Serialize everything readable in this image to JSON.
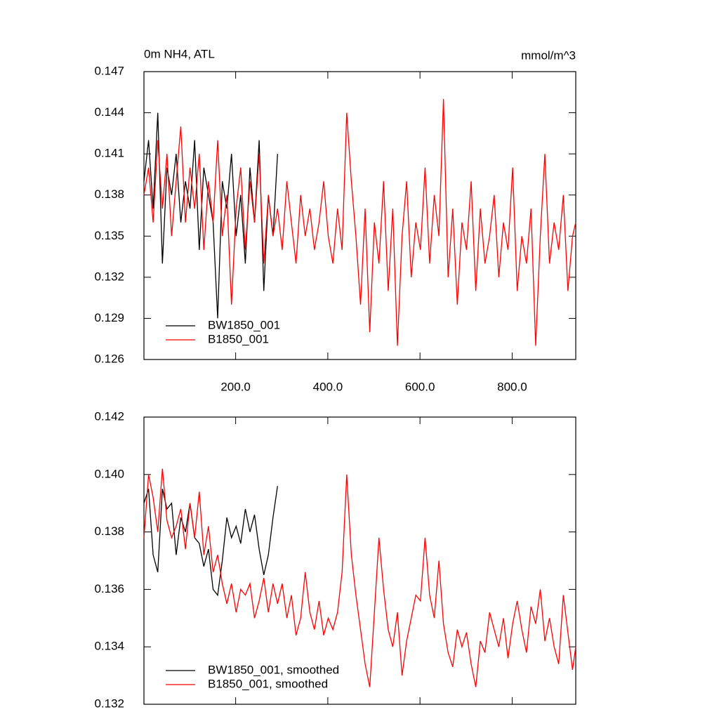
{
  "chart_data": [
    {
      "type": "line",
      "title": "0m NH4, ATL",
      "subtitle": "mmol/m^3",
      "x": [
        1,
        11,
        21,
        31,
        41,
        51,
        61,
        71,
        81,
        91,
        101,
        111,
        121,
        131,
        141,
        151,
        161,
        171,
        181,
        191,
        201,
        211,
        221,
        231,
        241,
        251,
        261,
        271,
        281,
        291,
        301,
        311,
        321,
        331,
        341,
        351,
        361,
        371,
        381,
        391,
        401,
        411,
        421,
        431,
        441,
        451,
        461,
        471,
        481,
        491,
        501,
        511,
        521,
        531,
        541,
        551,
        561,
        571,
        581,
        591,
        601,
        611,
        621,
        631,
        641,
        651,
        661,
        671,
        681,
        691,
        701,
        711,
        721,
        731,
        741,
        751,
        761,
        771,
        781,
        791,
        801,
        811,
        821,
        831,
        841,
        851,
        861,
        871,
        881,
        891,
        901,
        911,
        921,
        931,
        938
      ],
      "xlim": [
        1,
        938
      ],
      "xticks": [
        {
          "value": 200,
          "label": "200.0"
        },
        {
          "value": 400,
          "label": "400.0"
        },
        {
          "value": 600,
          "label": "600.0"
        },
        {
          "value": 800,
          "label": "800.0"
        }
      ],
      "ylim": [
        0.126,
        0.147
      ],
      "yticks": [
        0.126,
        0.129,
        0.132,
        0.135,
        0.138,
        0.141,
        0.144,
        0.147
      ],
      "legend": "lower left",
      "series": [
        {
          "name": "BW1850_001",
          "color": "#000000",
          "values": [
            0.139,
            0.142,
            0.137,
            0.144,
            0.133,
            0.14,
            0.138,
            0.141,
            0.136,
            0.139,
            0.137,
            0.142,
            0.134,
            0.14,
            0.138,
            0.136,
            0.129,
            0.139,
            0.137,
            0.141,
            0.135,
            0.138,
            0.133,
            0.14,
            0.136,
            0.142,
            0.131,
            0.138,
            0.135,
            0.141,
            null,
            null,
            null,
            null,
            null,
            null,
            null,
            null,
            null,
            null,
            null,
            null,
            null,
            null,
            null,
            null,
            null,
            null,
            null,
            null,
            null,
            null,
            null,
            null,
            null,
            null,
            null,
            null,
            null,
            null,
            null,
            null,
            null,
            null,
            null,
            null,
            null,
            null,
            null,
            null,
            null,
            null,
            null,
            null,
            null,
            null,
            null,
            null,
            null,
            null,
            null,
            null,
            null,
            null,
            null,
            null,
            null,
            null,
            null,
            null,
            null,
            null,
            null,
            null,
            null
          ]
        },
        {
          "name": "B1850_001",
          "color": "#ff0000",
          "values": [
            0.138,
            0.14,
            0.136,
            0.142,
            0.137,
            0.141,
            0.135,
            0.139,
            0.143,
            0.136,
            0.14,
            0.137,
            0.141,
            0.134,
            0.139,
            0.136,
            0.142,
            0.135,
            0.138,
            0.13,
            0.137,
            0.14,
            0.134,
            0.139,
            0.136,
            0.141,
            0.133,
            0.138,
            0.135,
            0.137,
            0.134,
            0.139,
            0.136,
            0.133,
            0.138,
            0.135,
            0.137,
            0.134,
            0.136,
            0.139,
            0.135,
            0.133,
            0.137,
            0.134,
            0.144,
            0.139,
            0.135,
            0.13,
            0.137,
            0.128,
            0.136,
            0.133,
            0.139,
            0.131,
            0.137,
            0.127,
            0.135,
            0.139,
            0.132,
            0.136,
            0.134,
            0.14,
            0.133,
            0.138,
            0.135,
            0.145,
            0.132,
            0.137,
            0.13,
            0.136,
            0.134,
            0.139,
            0.131,
            0.137,
            0.133,
            0.135,
            0.138,
            0.132,
            0.136,
            0.134,
            0.14,
            0.131,
            0.135,
            0.133,
            0.137,
            0.127,
            0.135,
            0.141,
            0.133,
            0.136,
            0.134,
            0.138,
            0.131,
            0.135,
            0.136
          ]
        }
      ]
    },
    {
      "type": "line",
      "x": [
        1,
        11,
        21,
        31,
        41,
        51,
        61,
        71,
        81,
        91,
        101,
        111,
        121,
        131,
        141,
        151,
        161,
        171,
        181,
        191,
        201,
        211,
        221,
        231,
        241,
        251,
        261,
        271,
        281,
        291,
        301,
        311,
        321,
        331,
        341,
        351,
        361,
        371,
        381,
        391,
        401,
        411,
        421,
        431,
        441,
        451,
        461,
        471,
        481,
        491,
        501,
        511,
        521,
        531,
        541,
        551,
        561,
        571,
        581,
        591,
        601,
        611,
        621,
        631,
        641,
        651,
        661,
        671,
        681,
        691,
        701,
        711,
        721,
        731,
        741,
        751,
        761,
        771,
        781,
        791,
        801,
        811,
        821,
        831,
        841,
        851,
        861,
        871,
        881,
        891,
        901,
        911,
        921,
        931,
        938
      ],
      "xlim": [
        1,
        938
      ],
      "xticks": [
        200,
        400,
        600,
        800
      ],
      "ylim": [
        0.132,
        0.142
      ],
      "yticks": [
        0.132,
        0.134,
        0.136,
        0.138,
        {
          "value": 0.14,
          "label": "0.140"
        },
        0.142
      ],
      "legend": "lower left",
      "series": [
        {
          "name": "BW1850_001, smoothed",
          "color": "#000000",
          "values": [
            0.139,
            0.1395,
            0.1372,
            0.1366,
            0.1395,
            0.1388,
            0.139,
            0.1372,
            0.1385,
            0.138,
            0.139,
            0.1378,
            0.1376,
            0.1368,
            0.1374,
            0.136,
            0.1358,
            0.137,
            0.1385,
            0.1378,
            0.1382,
            0.1376,
            0.1388,
            0.138,
            0.1386,
            0.1374,
            0.1365,
            0.1372,
            0.1385,
            0.1396,
            null,
            null,
            null,
            null,
            null,
            null,
            null,
            null,
            null,
            null,
            null,
            null,
            null,
            null,
            null,
            null,
            null,
            null,
            null,
            null,
            null,
            null,
            null,
            null,
            null,
            null,
            null,
            null,
            null,
            null,
            null,
            null,
            null,
            null,
            null,
            null,
            null,
            null,
            null,
            null,
            null,
            null,
            null,
            null,
            null,
            null,
            null,
            null,
            null,
            null,
            null,
            null,
            null,
            null,
            null,
            null,
            null,
            null,
            null,
            null,
            null,
            null,
            null,
            null,
            null
          ]
        },
        {
          "name": "B1850_001, smoothed",
          "color": "#ff0000",
          "values": [
            0.1378,
            0.14,
            0.1392,
            0.138,
            0.1402,
            0.1384,
            0.1378,
            0.1382,
            0.1388,
            0.1374,
            0.139,
            0.1378,
            0.1394,
            0.1372,
            0.1382,
            0.1366,
            0.1372,
            0.1362,
            0.1355,
            0.1362,
            0.1352,
            0.136,
            0.1358,
            0.1362,
            0.135,
            0.1356,
            0.1364,
            0.1352,
            0.1362,
            0.1355,
            0.1362,
            0.135,
            0.1358,
            0.1344,
            0.135,
            0.1366,
            0.1352,
            0.1346,
            0.1356,
            0.1344,
            0.135,
            0.1346,
            0.1352,
            0.1366,
            0.14,
            0.1372,
            0.1358,
            0.1346,
            0.1334,
            0.1326,
            0.1352,
            0.1378,
            0.136,
            0.1346,
            0.134,
            0.1352,
            0.133,
            0.1342,
            0.135,
            0.1358,
            0.1356,
            0.1378,
            0.1358,
            0.135,
            0.137,
            0.1348,
            0.1338,
            0.1333,
            0.1346,
            0.134,
            0.1345,
            0.1334,
            0.1326,
            0.1342,
            0.1338,
            0.1352,
            0.1346,
            0.134,
            0.135,
            0.1336,
            0.1348,
            0.1356,
            0.1346,
            0.1338,
            0.1354,
            0.1348,
            0.136,
            0.1342,
            0.135,
            0.134,
            0.1334,
            0.1358,
            0.1345,
            0.1332,
            0.134
          ]
        }
      ]
    }
  ]
}
